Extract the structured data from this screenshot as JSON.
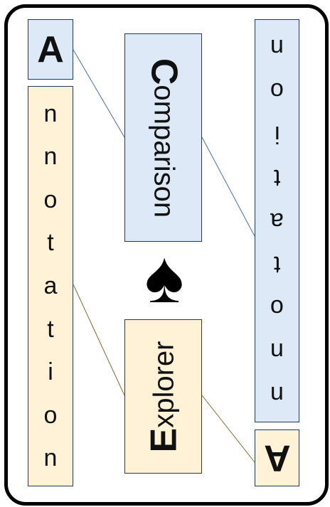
{
  "left_initial": "A",
  "left_word_letters": [
    "n",
    "n",
    "o",
    "t",
    "a",
    "t",
    "i",
    "o",
    "n"
  ],
  "top_center_initial": "C",
  "top_center_rest": "omparison",
  "bottom_center_initial": "E",
  "bottom_center_rest": "xplorer",
  "right_word_letters": [
    "n",
    "o",
    "i",
    "t",
    "a",
    "t",
    "o",
    "n",
    "n"
  ],
  "right_initial": "A",
  "suit_glyph": "♠",
  "colors": {
    "blue": "#dde9f6",
    "tan": "#fff2d6",
    "border": "#1f3a5f",
    "link_blue": "#4a6fa5",
    "link_tan": "#8a6a2a"
  }
}
